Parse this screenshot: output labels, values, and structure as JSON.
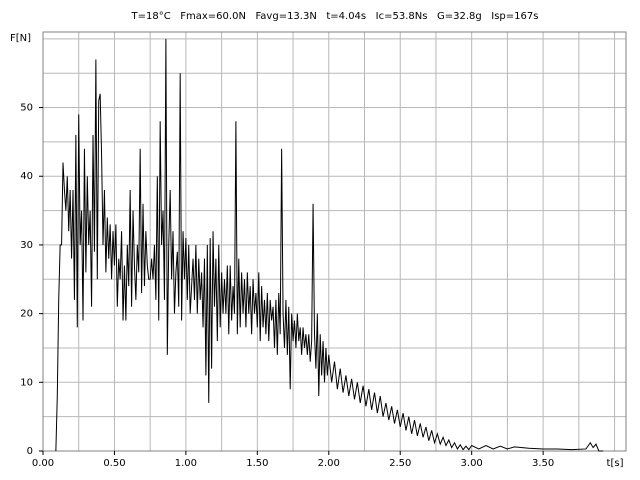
{
  "chart_data": {
    "type": "line",
    "title": "T=18°C   Fmax=60.0N   Favg=13.3N   t=4.04s   Ic=53.8Ns   G=32.8g   Isp=167s",
    "y_label": "F[N]",
    "x_label": "t[s]",
    "xlim": [
      0,
      4.08
    ],
    "ylim": [
      0,
      61
    ],
    "xticks": [
      {
        "value": 0,
        "label": "0.00"
      },
      {
        "value": 0.5,
        "label": "0.50"
      },
      {
        "value": 1,
        "label": "1.00"
      },
      {
        "value": 1.5,
        "label": "1.50"
      },
      {
        "value": 2,
        "label": "2.00"
      },
      {
        "value": 2.5,
        "label": "2.50"
      },
      {
        "value": 3,
        "label": "3.00"
      },
      {
        "value": 3.5,
        "label": "3.50"
      }
    ],
    "yticks": [
      0,
      10,
      20,
      30,
      40,
      50
    ],
    "xgrid": [
      0.25,
      0.5,
      0.75,
      1,
      1.25,
      1.5,
      1.75,
      2,
      2.25,
      2.5,
      2.75,
      3,
      3.25,
      3.5,
      3.75,
      4
    ],
    "ygrid": [
      5,
      10,
      15,
      20,
      25,
      30,
      35,
      40,
      45,
      50,
      55,
      60
    ],
    "grid": true,
    "x": [
      0.09,
      0.1,
      0.11,
      0.12,
      0.13,
      0.14,
      0.15,
      0.16,
      0.17,
      0.18,
      0.19,
      0.2,
      0.21,
      0.22,
      0.23,
      0.24,
      0.25,
      0.26,
      0.27,
      0.28,
      0.29,
      0.3,
      0.31,
      0.32,
      0.33,
      0.34,
      0.35,
      0.36,
      0.37,
      0.38,
      0.39,
      0.4,
      0.41,
      0.42,
      0.43,
      0.44,
      0.45,
      0.46,
      0.47,
      0.48,
      0.49,
      0.5,
      0.51,
      0.52,
      0.53,
      0.54,
      0.55,
      0.56,
      0.57,
      0.58,
      0.59,
      0.6,
      0.61,
      0.62,
      0.63,
      0.64,
      0.65,
      0.66,
      0.67,
      0.68,
      0.69,
      0.7,
      0.71,
      0.72,
      0.73,
      0.74,
      0.75,
      0.76,
      0.77,
      0.78,
      0.79,
      0.8,
      0.81,
      0.82,
      0.83,
      0.84,
      0.85,
      0.86,
      0.87,
      0.88,
      0.89,
      0.9,
      0.91,
      0.92,
      0.93,
      0.94,
      0.95,
      0.96,
      0.97,
      0.98,
      0.99,
      1.0,
      1.01,
      1.02,
      1.03,
      1.04,
      1.05,
      1.06,
      1.07,
      1.08,
      1.09,
      1.1,
      1.11,
      1.12,
      1.13,
      1.14,
      1.15,
      1.16,
      1.17,
      1.18,
      1.19,
      1.2,
      1.21,
      1.22,
      1.23,
      1.24,
      1.25,
      1.26,
      1.27,
      1.28,
      1.29,
      1.3,
      1.31,
      1.32,
      1.33,
      1.34,
      1.35,
      1.36,
      1.37,
      1.38,
      1.39,
      1.4,
      1.41,
      1.42,
      1.43,
      1.44,
      1.45,
      1.46,
      1.47,
      1.48,
      1.49,
      1.5,
      1.51,
      1.52,
      1.53,
      1.54,
      1.55,
      1.56,
      1.57,
      1.58,
      1.59,
      1.6,
      1.61,
      1.62,
      1.63,
      1.64,
      1.65,
      1.66,
      1.67,
      1.68,
      1.69,
      1.7,
      1.71,
      1.72,
      1.73,
      1.74,
      1.75,
      1.76,
      1.77,
      1.78,
      1.79,
      1.8,
      1.81,
      1.82,
      1.83,
      1.84,
      1.85,
      1.86,
      1.87,
      1.88,
      1.89,
      1.9,
      1.91,
      1.92,
      1.93,
      1.94,
      1.95,
      1.96,
      1.97,
      1.98,
      1.99,
      2.0,
      2.02,
      2.04,
      2.06,
      2.08,
      2.1,
      2.12,
      2.14,
      2.16,
      2.18,
      2.2,
      2.22,
      2.24,
      2.26,
      2.28,
      2.3,
      2.32,
      2.34,
      2.36,
      2.38,
      2.4,
      2.42,
      2.44,
      2.46,
      2.48,
      2.5,
      2.52,
      2.54,
      2.56,
      2.58,
      2.6,
      2.62,
      2.64,
      2.66,
      2.68,
      2.7,
      2.72,
      2.74,
      2.76,
      2.78,
      2.8,
      2.82,
      2.84,
      2.86,
      2.88,
      2.9,
      2.92,
      2.94,
      2.96,
      2.98,
      3.0,
      3.05,
      3.1,
      3.15,
      3.2,
      3.25,
      3.3,
      3.4,
      3.5,
      3.6,
      3.7,
      3.8,
      3.83,
      3.85,
      3.87,
      3.89,
      3.92
    ],
    "series": [
      {
        "color": "#000000",
        "values": [
          0,
          8,
          22,
          30,
          30,
          42,
          38,
          35,
          40,
          32,
          38,
          28,
          38,
          22,
          46,
          18,
          49,
          30,
          35,
          19,
          44,
          26,
          40,
          30,
          35,
          21,
          46,
          29,
          57,
          25,
          51,
          52,
          43,
          30,
          38,
          26,
          34,
          28,
          33,
          25,
          32,
          27,
          33,
          21,
          28,
          25,
          32,
          19,
          27,
          19,
          30,
          24,
          38,
          21,
          35,
          27,
          22,
          30,
          26,
          44,
          23,
          36,
          24,
          32,
          27,
          25,
          25,
          28,
          25,
          30,
          22,
          40,
          19,
          48,
          30,
          35,
          22,
          60,
          14,
          30,
          38,
          25,
          32,
          20,
          26,
          29,
          21,
          55,
          19,
          32,
          25,
          31,
          22,
          30,
          20,
          24,
          28,
          22,
          30,
          20,
          28,
          22,
          26,
          18,
          28,
          11,
          30,
          7,
          31,
          12,
          32,
          21,
          28,
          16,
          30,
          18,
          26,
          20,
          25,
          20,
          27,
          17,
          27,
          19,
          24,
          20,
          48,
          17,
          28,
          18,
          26,
          20,
          25,
          18,
          26,
          20,
          24,
          17,
          25,
          20,
          23,
          18,
          26,
          16,
          24,
          18,
          22,
          17,
          23,
          16,
          22,
          19,
          21,
          15,
          22,
          14,
          23,
          17,
          44,
          20,
          15,
          22,
          14,
          21,
          9,
          20,
          16,
          19,
          15,
          20,
          16,
          18,
          14,
          18,
          15,
          17,
          14,
          17,
          13,
          16,
          36,
          17,
          12,
          20,
          8,
          17,
          11,
          16,
          10,
          15,
          11,
          14,
          10,
          13,
          9,
          12,
          8.5,
          11,
          8,
          10.5,
          7.5,
          10,
          7,
          9.5,
          6.5,
          9,
          6,
          8.5,
          5.5,
          8,
          5,
          7,
          4.5,
          6.5,
          4,
          6,
          3.5,
          5.5,
          3,
          5,
          2.5,
          4.5,
          2.2,
          4,
          2,
          3.5,
          1.5,
          3,
          1.2,
          2.5,
          1,
          2,
          0.8,
          1.6,
          0.5,
          1.2,
          0.3,
          0.9,
          0.2,
          0.7,
          0.2,
          0.8,
          0.3,
          0.8,
          0.3,
          0.7,
          0.3,
          0.6,
          0.4,
          0.3,
          0.3,
          0.2,
          0.3,
          1.2,
          0.5,
          1,
          0,
          0
        ]
      }
    ]
  }
}
